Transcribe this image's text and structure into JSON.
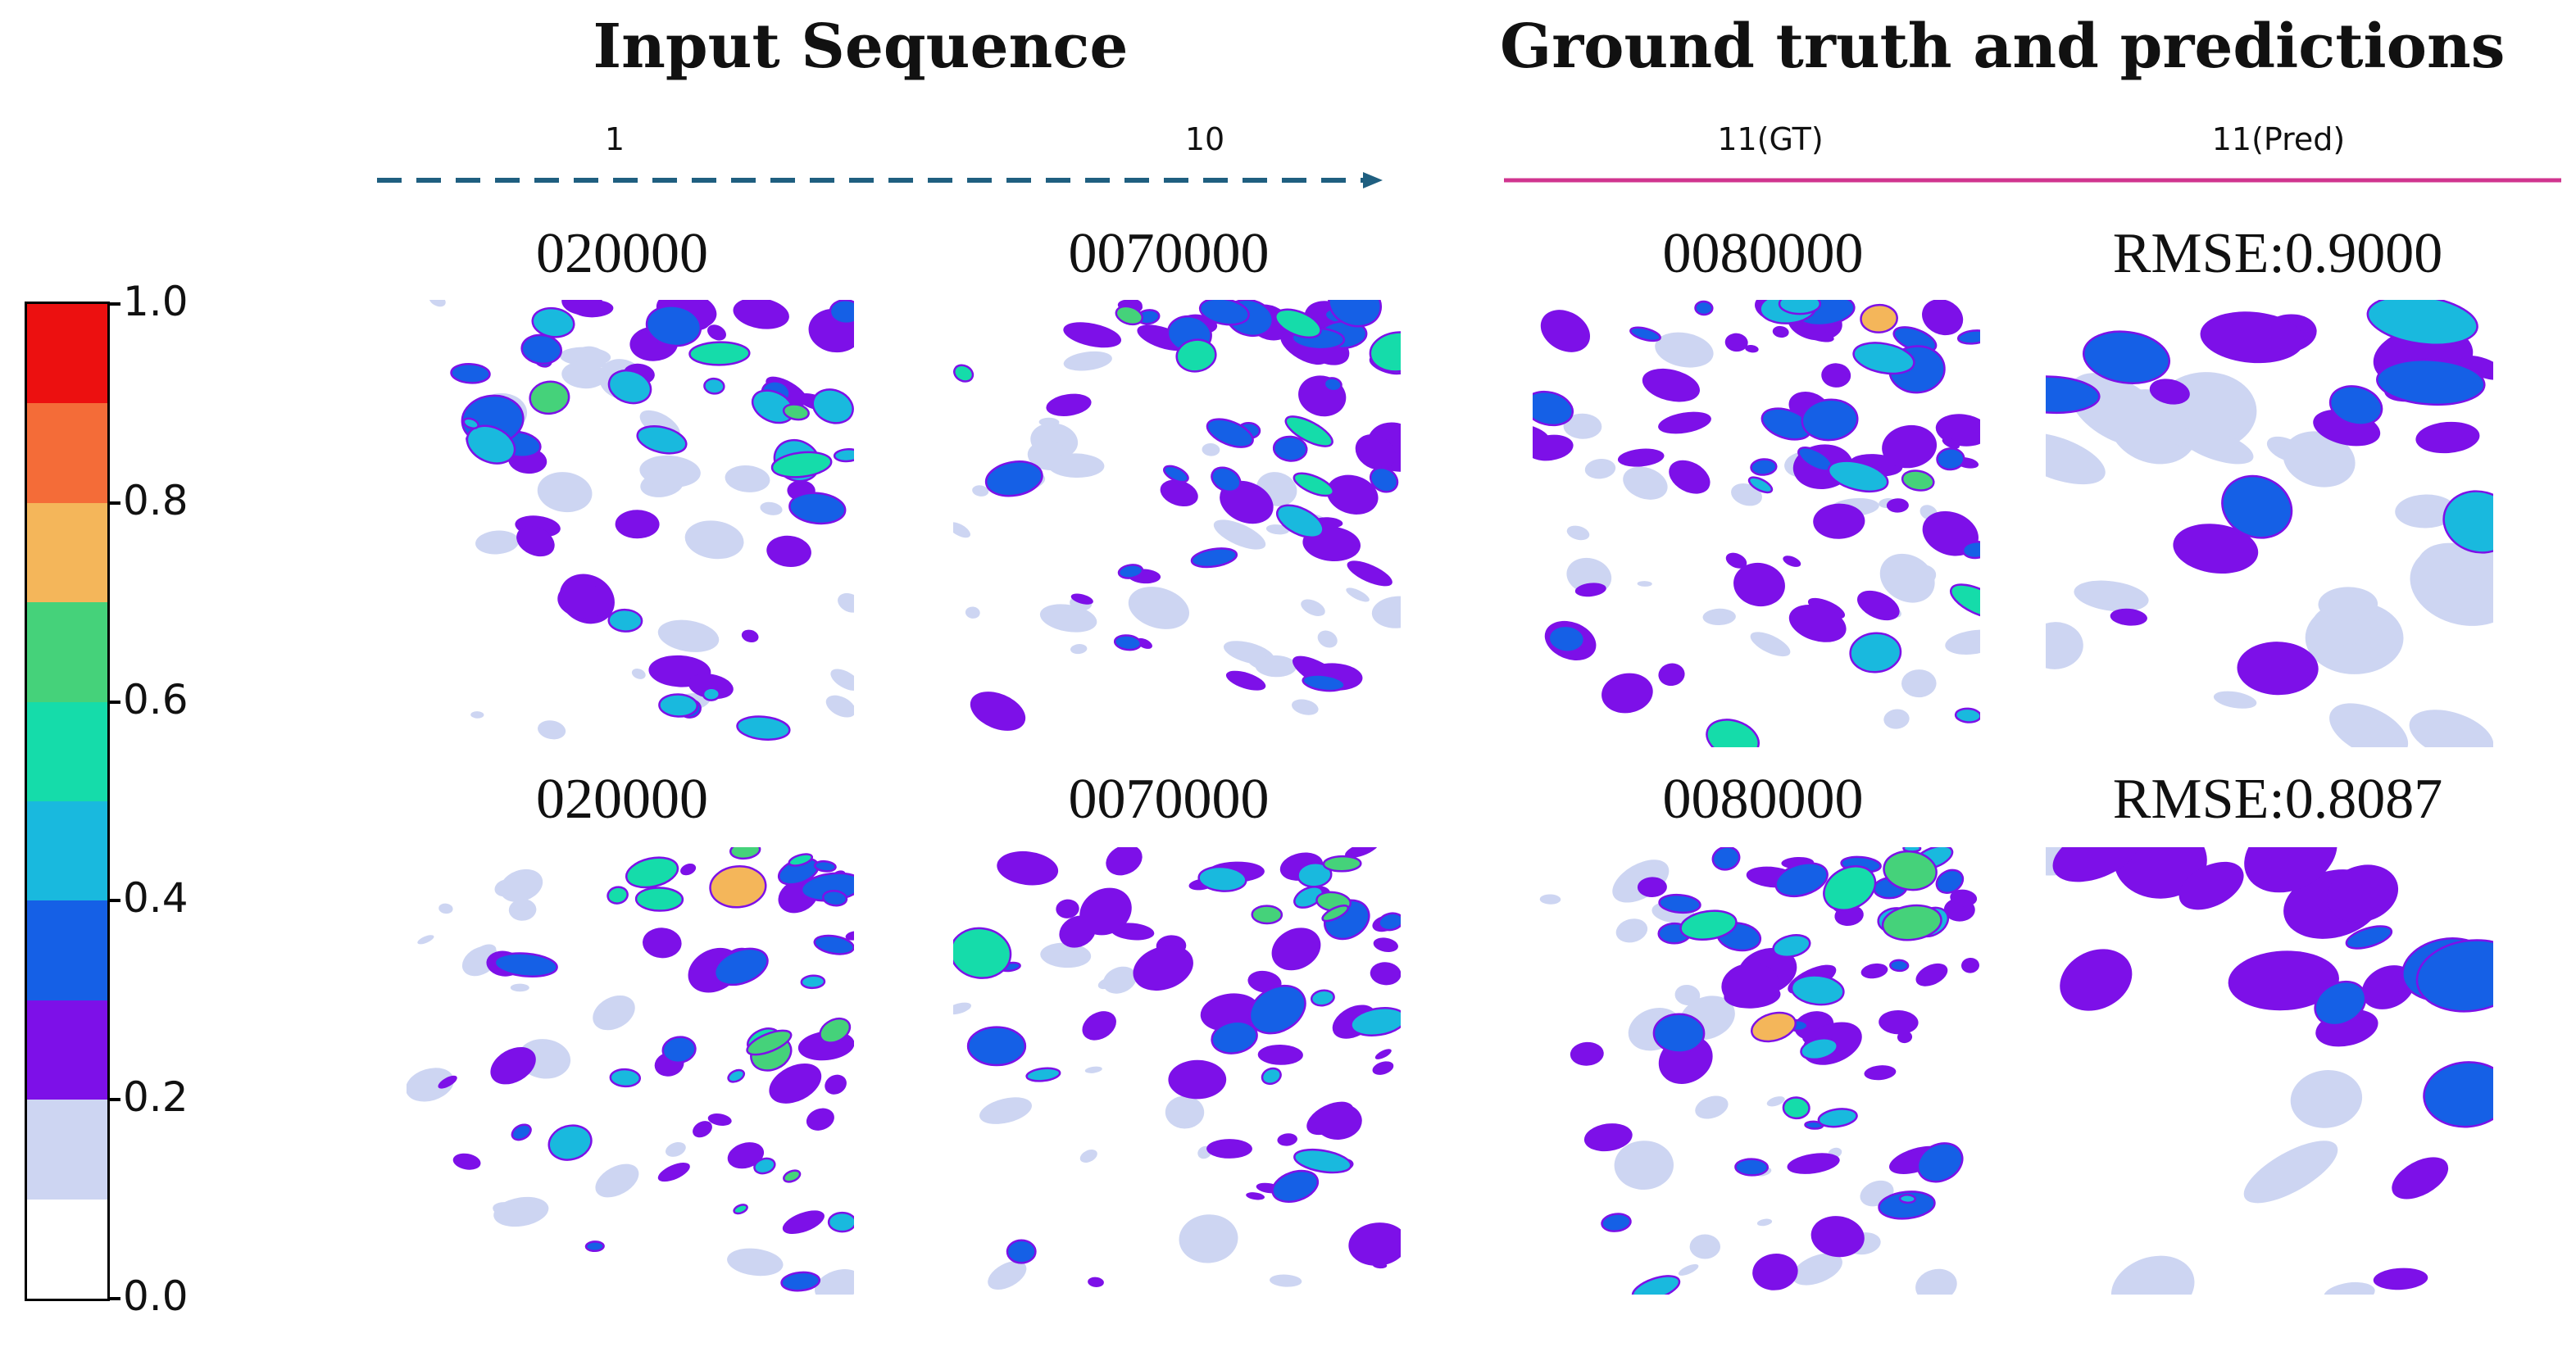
{
  "headers": {
    "input_sequence": "Input Sequence",
    "ground_truth_predictions": "Ground truth and predictions"
  },
  "sequence_labels": {
    "first": "1",
    "last": "10",
    "gt": "11(GT)",
    "pred": "11(Pred)"
  },
  "rows": [
    {
      "panels": [
        {
          "title": "020000",
          "kind": "input-1"
        },
        {
          "title": "0070000",
          "kind": "input-10"
        },
        {
          "title": "0080000",
          "kind": "ground-truth"
        },
        {
          "title": "RMSE:0.9000",
          "kind": "prediction"
        }
      ]
    },
    {
      "panels": [
        {
          "title": "020000",
          "kind": "input-1"
        },
        {
          "title": "0070000",
          "kind": "input-10"
        },
        {
          "title": "0080000",
          "kind": "ground-truth"
        },
        {
          "title": "RMSE:0.8087",
          "kind": "prediction"
        }
      ]
    }
  ],
  "colorbar": {
    "tick_labels": [
      "1.0",
      "0.8",
      "0.6",
      "0.4",
      "0.2",
      "0.0"
    ],
    "levels": [
      "#ffffff",
      "#cdd5f2",
      "#7d10e8",
      "#1560e6",
      "#19b9de",
      "#15dcaa",
      "#45d27a",
      "#f4b65a",
      "#f46c38",
      "#ec1010"
    ]
  },
  "colors": {
    "dashed_arrow": "#1f5f80",
    "gt_pred_line": "#d0348f"
  }
}
